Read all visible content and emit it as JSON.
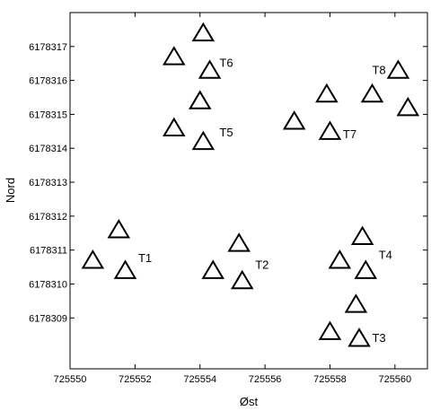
{
  "chart_data": {
    "type": "scatter",
    "xlabel": "Øst",
    "ylabel": "Nord",
    "xlim": [
      725550,
      725561
    ],
    "ylim": [
      6178307.5,
      6178318
    ],
    "x_ticks": [
      725550,
      725552,
      725554,
      725556,
      725558,
      725560
    ],
    "x_tick_labels": [
      "725550",
      "725552",
      "725554",
      "725556",
      "725558",
      "725560"
    ],
    "y_ticks": [
      6178309,
      6178310,
      6178311,
      6178312,
      6178313,
      6178314,
      6178315,
      6178316,
      6178317
    ],
    "y_tick_labels": [
      "6178309",
      "6178310",
      "6178311",
      "6178312",
      "6178313",
      "6178314",
      "6178315",
      "6178316",
      "6178317"
    ],
    "grid": false,
    "marker": "open-triangle",
    "points": [
      {
        "x": 725550.7,
        "y": 6178310.7
      },
      {
        "x": 725551.5,
        "y": 6178311.6
      },
      {
        "x": 725551.7,
        "y": 6178310.4
      },
      {
        "x": 725553.2,
        "y": 6178314.6
      },
      {
        "x": 725553.2,
        "y": 6178316.7
      },
      {
        "x": 725554.0,
        "y": 6178315.4
      },
      {
        "x": 725554.1,
        "y": 6178317.4
      },
      {
        "x": 725554.3,
        "y": 6178316.3
      },
      {
        "x": 725554.1,
        "y": 6178314.2
      },
      {
        "x": 725554.4,
        "y": 6178310.4
      },
      {
        "x": 725555.2,
        "y": 6178311.2
      },
      {
        "x": 725555.3,
        "y": 6178310.1
      },
      {
        "x": 725556.9,
        "y": 6178314.8
      },
      {
        "x": 725557.9,
        "y": 6178315.6
      },
      {
        "x": 725558.0,
        "y": 6178314.5
      },
      {
        "x": 725559.3,
        "y": 6178315.6
      },
      {
        "x": 725560.1,
        "y": 6178316.3
      },
      {
        "x": 725560.4,
        "y": 6178315.2
      },
      {
        "x": 725558.3,
        "y": 6178310.7
      },
      {
        "x": 725559.0,
        "y": 6178311.4
      },
      {
        "x": 725559.1,
        "y": 6178310.4
      },
      {
        "x": 725558.8,
        "y": 6178309.4
      },
      {
        "x": 725558.0,
        "y": 6178308.6
      },
      {
        "x": 725558.9,
        "y": 6178308.4
      }
    ],
    "annotations": [
      {
        "text": "T1",
        "x": 725552.1,
        "y": 6178310.75
      },
      {
        "text": "T2",
        "x": 725555.7,
        "y": 6178310.55
      },
      {
        "text": "T3",
        "x": 725559.3,
        "y": 6178308.4
      },
      {
        "text": "T4",
        "x": 725559.5,
        "y": 6178310.85
      },
      {
        "text": "T5",
        "x": 725554.6,
        "y": 6178314.45
      },
      {
        "text": "T6",
        "x": 725554.6,
        "y": 6178316.5
      },
      {
        "text": "T7",
        "x": 725558.4,
        "y": 6178314.4
      },
      {
        "text": "T8",
        "x": 725559.3,
        "y": 6178316.3
      }
    ]
  }
}
